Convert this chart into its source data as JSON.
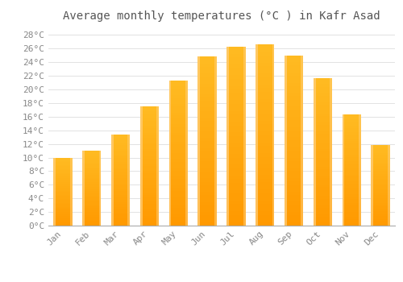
{
  "title": "Average monthly temperatures (°C ) in Kafr Asad",
  "months": [
    "Jan",
    "Feb",
    "Mar",
    "Apr",
    "May",
    "Jun",
    "Jul",
    "Aug",
    "Sep",
    "Oct",
    "Nov",
    "Dec"
  ],
  "temperatures": [
    9.9,
    11.0,
    13.4,
    17.5,
    21.3,
    24.8,
    26.3,
    26.6,
    25.0,
    21.7,
    16.3,
    11.8
  ],
  "bar_color_top": "#FFBB22",
  "bar_color_bottom": "#FF9900",
  "bar_edge_color": "#FFD080",
  "ylim": [
    0,
    29
  ],
  "yticks": [
    0,
    2,
    4,
    6,
    8,
    10,
    12,
    14,
    16,
    18,
    20,
    22,
    24,
    26,
    28
  ],
  "ylabel_suffix": "°C",
  "background_color": "#FFFFFF",
  "grid_color": "#DDDDDD",
  "title_fontsize": 10,
  "tick_fontsize": 8,
  "font_family": "monospace",
  "title_color": "#555555",
  "tick_color": "#888888"
}
